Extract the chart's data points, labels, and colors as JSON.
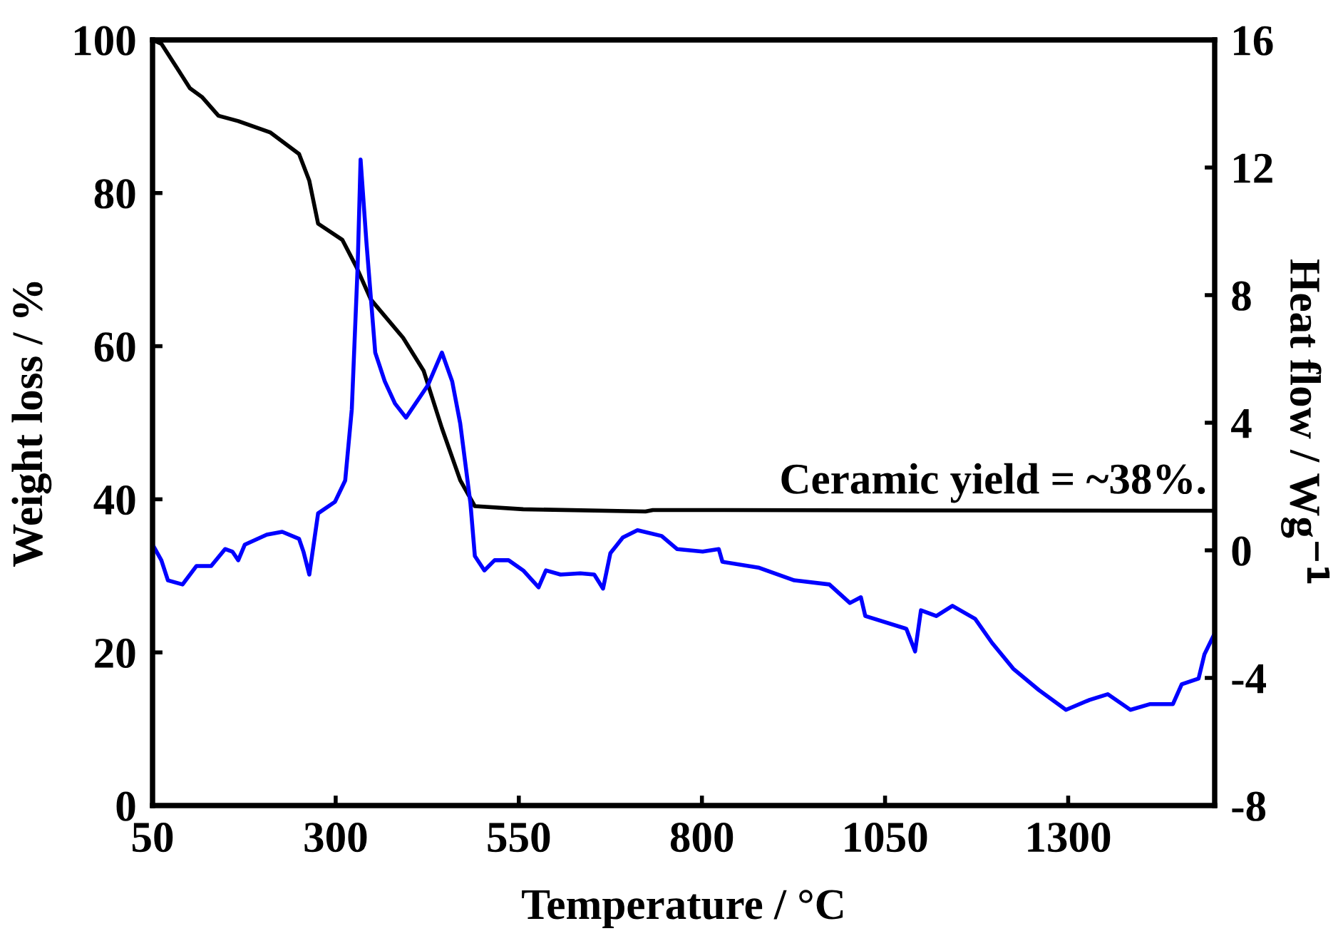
{
  "chart_data": {
    "type": "line",
    "xlabel": "Temperature / °C",
    "ylabel": "Weight loss / %",
    "y2label": "Heat flow / Wg$^{−1}$",
    "xlim": [
      50,
      1500
    ],
    "xticks": [
      50,
      300,
      550,
      800,
      1050,
      1300
    ],
    "ylim": [
      0,
      100
    ],
    "yticks": [
      0,
      20,
      40,
      60,
      80,
      100
    ],
    "y2lim": [
      -8,
      16
    ],
    "y2ticks": [
      {
        "value": -8,
        "label": "-8"
      },
      {
        "value": -4,
        "label": "-4"
      },
      0,
      4,
      8,
      12,
      16
    ],
    "grid": false,
    "legend": false,
    "marker": "none",
    "line_style": "solid",
    "annotations": [
      {
        "text": "Ceramic yield = ~38%.",
        "x": 1500,
        "y": 38.5
      }
    ],
    "series": [
      {
        "color": "#000000",
        "x": [
          50,
          62,
          101,
          118,
          140,
          167,
          211,
          250,
          264,
          276,
          309,
          328,
          348,
          392,
          420,
          445,
          470,
          490,
          556,
          723,
          733,
          1500
        ],
        "values": [
          100,
          99.5,
          93.7,
          92.5,
          90.1,
          89.4,
          87.9,
          85.1,
          81.6,
          76.0,
          73.9,
          70.4,
          66.1,
          61.1,
          56.8,
          49.3,
          42.5,
          39.1,
          38.7,
          38.4,
          38.6,
          38.5
        ]
      },
      {
        "color": "#0000ff",
        "axis": "y2",
        "x": [
          50,
          62,
          71,
          91,
          110,
          130,
          149,
          159,
          167,
          176,
          206,
          227,
          250,
          256,
          264,
          276,
          299,
          313,
          322,
          330,
          334,
          342,
          354,
          367,
          381,
          396,
          426,
          445,
          459,
          470,
          484,
          490,
          503,
          517,
          536,
          556,
          577,
          587,
          607,
          634,
          653,
          665,
          675,
          692,
          712,
          745,
          766,
          801,
          823,
          828,
          877,
          926,
          974,
          1002,
          1017,
          1023,
          1079,
          1091,
          1099,
          1120,
          1142,
          1173,
          1196,
          1225,
          1260,
          1297,
          1329,
          1354,
          1385,
          1412,
          1443,
          1455,
          1478,
          1486,
          1500
        ],
        "values": [
          0.18,
          -0.31,
          -0.94,
          -1.07,
          -0.49,
          -0.49,
          0.04,
          -0.04,
          -0.31,
          0.18,
          0.49,
          0.58,
          0.36,
          -0.04,
          -0.76,
          1.16,
          1.52,
          2.19,
          4.42,
          8.9,
          12.25,
          9.65,
          6.2,
          5.3,
          4.6,
          4.16,
          5.18,
          6.2,
          5.3,
          3.98,
          1.47,
          -0.18,
          -0.63,
          -0.31,
          -0.31,
          -0.63,
          -1.16,
          -0.63,
          -0.76,
          -0.72,
          -0.76,
          -1.2,
          -0.09,
          0.4,
          0.63,
          0.45,
          0.04,
          -0.04,
          0.04,
          -0.36,
          -0.54,
          -0.94,
          -1.07,
          -1.65,
          -1.47,
          -2.06,
          -2.46,
          -3.17,
          -1.88,
          -2.06,
          -1.74,
          -2.15,
          -2.9,
          -3.71,
          -4.38,
          -5.0,
          -4.69,
          -4.51,
          -5.0,
          -4.82,
          -4.82,
          -4.2,
          -4.02,
          -3.26,
          -2.6
        ]
      }
    ]
  }
}
